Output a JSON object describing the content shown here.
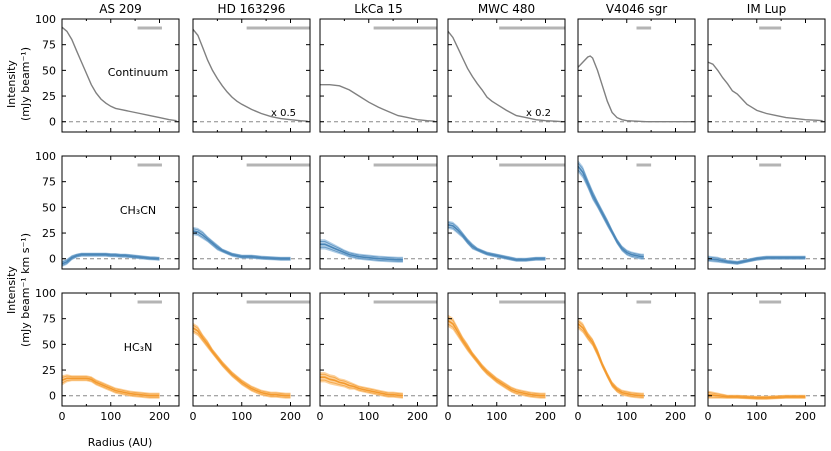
{
  "figure": {
    "xlabel": "Radius (AU)",
    "ylabels": [
      {
        "line1": "Intensity",
        "line2": "(mJy beam⁻¹)"
      },
      null,
      {
        "line1": "Intensity",
        "line2": "(mJy beam⁻¹ km s⁻¹)"
      }
    ],
    "row_labels": [
      "Continuum",
      "CH₃CN",
      "HC₃N"
    ],
    "sources": [
      "AS 209",
      "HD 163296",
      "LkCa 15",
      "MWC 480",
      "V4046 sgr",
      "IM Lup"
    ],
    "scale_notes": [
      {
        "col": 1,
        "text": "x 0.5"
      },
      {
        "col": 3,
        "text": "x 0.2"
      }
    ],
    "colors": {
      "continuum": "#808080",
      "ch3cn_line": "#4a86b8",
      "ch3cn_band": "#9fc3e2",
      "hc3n_line": "#f39a2e",
      "hc3n_band": "#fbc98a",
      "beam_bar": "#b4b4b4",
      "zero_line": "#888888"
    }
  },
  "chart_data": {
    "type": "line",
    "xlim": [
      0,
      240
    ],
    "ylim": [
      -10,
      100
    ],
    "xticks": [
      0,
      100,
      200
    ],
    "yticks": [
      0,
      25,
      50,
      75,
      100
    ],
    "beam_bars": [
      [
        155,
        205
      ],
      [
        110,
        240
      ],
      [
        110,
        240
      ],
      [
        105,
        240
      ],
      [
        120,
        150
      ],
      [
        105,
        150
      ]
    ],
    "rows": [
      {
        "name": "Continuum",
        "band": false,
        "series": [
          {
            "source": "AS 209",
            "x": [
              0,
              10,
              20,
              30,
              40,
              50,
              60,
              70,
              80,
              90,
              100,
              110,
              120,
              140,
              160,
              180,
              200,
              220,
              235
            ],
            "y": [
              92,
              88,
              80,
              69,
              58,
              47,
              36,
              28,
              22,
              18,
              15,
              13,
              12,
              10,
              8,
              6,
              4,
              2,
              1
            ]
          },
          {
            "source": "HD 163296",
            "x": [
              0,
              10,
              20,
              30,
              40,
              50,
              60,
              70,
              80,
              90,
              100,
              120,
              140,
              160,
              180,
              200,
              220,
              235
            ],
            "y": [
              90,
              84,
              72,
              60,
              50,
              42,
              35,
              29,
              24,
              20,
              17,
              12,
              8,
              5,
              3,
              2,
              1,
              0.5
            ]
          },
          {
            "source": "LkCa 15",
            "x": [
              0,
              20,
              40,
              60,
              80,
              100,
              120,
              140,
              160,
              180,
              200,
              220,
              235
            ],
            "y": [
              36,
              36,
              35,
              31,
              25,
              19,
              14,
              10,
              6,
              4,
              2,
              1,
              0.5
            ]
          },
          {
            "source": "MWC 480",
            "x": [
              0,
              10,
              20,
              30,
              40,
              50,
              60,
              70,
              80,
              90,
              100,
              120,
              140,
              160,
              180,
              200,
              220,
              235
            ],
            "y": [
              88,
              82,
              72,
              62,
              52,
              44,
              37,
              31,
              24,
              20,
              17,
              11,
              6,
              4,
              2,
              1,
              0.5,
              0
            ]
          },
          {
            "source": "V4046 sgr",
            "x": [
              0,
              10,
              20,
              25,
              30,
              40,
              50,
              60,
              70,
              80,
              90,
              100,
              120,
              140,
              160,
              200,
              235
            ],
            "y": [
              53,
              58,
              63,
              64,
              62,
              50,
              35,
              20,
              9,
              4,
              2,
              1,
              0.5,
              0,
              0,
              0,
              0
            ]
          },
          {
            "source": "IM Lup",
            "x": [
              0,
              10,
              20,
              30,
              40,
              50,
              60,
              70,
              80,
              90,
              100,
              120,
              140,
              160,
              180,
              200,
              220,
              235
            ],
            "y": [
              58,
              56,
              50,
              43,
              37,
              30,
              27,
              22,
              17,
              14,
              11,
              8,
              6,
              4,
              3,
              2,
              1.5,
              1
            ]
          }
        ]
      },
      {
        "name": "CH3CN",
        "band": true,
        "series": [
          {
            "source": "AS 209",
            "x": [
              0,
              10,
              20,
              30,
              40,
              50,
              60,
              70,
              80,
              90,
              100,
              110,
              120,
              130,
              140,
              150,
              160,
              170,
              180,
              190,
              200
            ],
            "y": [
              -5,
              -3,
              1,
              3,
              4,
              4,
              4,
              4,
              4,
              4,
              3.5,
              3.5,
              3,
              3,
              2.5,
              2,
              1.5,
              1,
              0.5,
              0.3,
              0
            ],
            "err": [
              3,
              3,
              2.5,
              2,
              2,
              2,
              2,
              2,
              2,
              2,
              2,
              2,
              2,
              2,
              2,
              2,
              2,
              2,
              2,
              2,
              2
            ]
          },
          {
            "source": "HD 163296",
            "x": [
              0,
              10,
              20,
              30,
              40,
              50,
              60,
              70,
              80,
              90,
              100,
              120,
              140,
              160,
              180,
              200
            ],
            "y": [
              27,
              26,
              23,
              19,
              15,
              11,
              8,
              6,
              4,
              3,
              2,
              2,
              1,
              0.5,
              0,
              0
            ],
            "err": [
              4,
              4,
              4,
              3,
              3,
              3,
              2,
              2,
              2,
              2,
              2,
              2,
              2,
              2,
              2,
              2
            ]
          },
          {
            "source": "LkCa 15",
            "x": [
              0,
              10,
              20,
              30,
              40,
              50,
              60,
              70,
              80,
              90,
              100,
              120,
              140,
              160,
              170
            ],
            "y": [
              14,
              14,
              12,
              10,
              8,
              6,
              4,
              3,
              2,
              1.5,
              1,
              0,
              -0.5,
              -1,
              -1
            ],
            "err": [
              5,
              5,
              4.5,
              4,
              3.5,
              3,
              3,
              3,
              3,
              3,
              3,
              3,
              3,
              3,
              3
            ]
          },
          {
            "source": "MWC 480",
            "x": [
              0,
              10,
              20,
              30,
              40,
              50,
              60,
              70,
              80,
              90,
              100,
              120,
              140,
              160,
              180,
              200
            ],
            "y": [
              33,
              32,
              28,
              23,
              17,
              12,
              9,
              7,
              5,
              4,
              3,
              1,
              -1,
              -1,
              0,
              0
            ],
            "err": [
              4,
              4,
              4,
              3,
              3,
              3,
              2,
              2,
              2,
              2,
              2,
              2,
              2,
              2,
              2,
              2
            ]
          },
          {
            "source": "V4046 sgr",
            "x": [
              0,
              10,
              20,
              30,
              40,
              50,
              60,
              70,
              80,
              90,
              100,
              110,
              120,
              130,
              135
            ],
            "y": [
              90,
              84,
              73,
              62,
              53,
              44,
              35,
              26,
              17,
              10,
              6,
              4,
              3,
              2,
              2
            ],
            "err": [
              6,
              6,
              5,
              5,
              4,
              4,
              4,
              3,
              3,
              3,
              3,
              3,
              3,
              3,
              3
            ]
          },
          {
            "source": "IM Lup",
            "x": [
              0,
              20,
              40,
              60,
              80,
              100,
              120,
              140,
              160,
              180,
              200
            ],
            "y": [
              0,
              -1,
              -3,
              -4,
              -2,
              0,
              1,
              1,
              1,
              1,
              1
            ],
            "err": [
              3,
              3,
              2,
              2,
              2,
              2,
              2,
              2,
              2,
              2,
              2
            ]
          }
        ]
      },
      {
        "name": "HC3N",
        "band": true,
        "series": [
          {
            "source": "AS 209",
            "x": [
              0,
              10,
              20,
              30,
              40,
              50,
              60,
              70,
              80,
              90,
              100,
              110,
              120,
              130,
              140,
              150,
              160,
              170,
              180,
              190,
              200
            ],
            "y": [
              15,
              17,
              17,
              17,
              17,
              17,
              16,
              13,
              11,
              9,
              7,
              5,
              4,
              3,
              2,
              1.5,
              1,
              0.5,
              0,
              0,
              0
            ],
            "err": [
              5,
              4,
              3,
              3,
              3,
              3,
              3,
              3,
              3,
              3,
              3,
              3,
              3,
              3,
              3,
              3,
              3,
              3,
              3,
              3,
              3
            ]
          },
          {
            "source": "HD 163296",
            "x": [
              0,
              10,
              20,
              30,
              40,
              50,
              60,
              70,
              80,
              90,
              100,
              110,
              120,
              130,
              140,
              150,
              160,
              170,
              180,
              190,
              200
            ],
            "y": [
              66,
              63,
              56,
              50,
              43,
              37,
              31,
              26,
              21,
              17,
              13,
              10,
              7,
              5,
              3,
              2,
              1,
              1,
              0.5,
              0,
              0
            ],
            "err": [
              5,
              5,
              4,
              4,
              3,
              3,
              3,
              3,
              3,
              3,
              3,
              3,
              3,
              3,
              3,
              3,
              3,
              3,
              3,
              3,
              3
            ]
          },
          {
            "source": "LkCa 15",
            "x": [
              0,
              10,
              20,
              30,
              40,
              50,
              60,
              70,
              80,
              90,
              100,
              110,
              120,
              130,
              140,
              150,
              160,
              170
            ],
            "y": [
              18,
              18,
              16,
              15,
              13,
              12,
              10,
              9,
              7,
              6,
              5,
              4,
              3,
              2,
              1,
              1,
              0.5,
              0
            ],
            "err": [
              5,
              5,
              5,
              5,
              4,
              4,
              4,
              3,
              3,
              3,
              3,
              3,
              3,
              3,
              3,
              3,
              3,
              3
            ]
          },
          {
            "source": "MWC 480",
            "x": [
              0,
              10,
              20,
              30,
              40,
              50,
              60,
              70,
              80,
              90,
              100,
              110,
              120,
              130,
              140,
              150,
              160,
              170,
              180,
              190,
              200
            ],
            "y": [
              73,
              70,
              62,
              54,
              47,
              40,
              34,
              28,
              23,
              19,
              15,
              12,
              9,
              6,
              4,
              3,
              2,
              1,
              0.5,
              0,
              0
            ],
            "err": [
              6,
              6,
              5,
              4,
              4,
              3,
              3,
              3,
              3,
              3,
              3,
              3,
              3,
              3,
              3,
              3,
              3,
              3,
              3,
              3,
              3
            ]
          },
          {
            "source": "V4046 sgr",
            "x": [
              0,
              10,
              20,
              30,
              40,
              50,
              60,
              70,
              80,
              90,
              100,
              110,
              120,
              130,
              135
            ],
            "y": [
              70,
              66,
              58,
              52,
              42,
              30,
              20,
              11,
              6,
              3,
              2,
              1,
              0.5,
              0,
              0
            ],
            "err": [
              5,
              5,
              4,
              4,
              4,
              3,
              3,
              3,
              3,
              3,
              3,
              3,
              3,
              3,
              3
            ]
          },
          {
            "source": "IM Lup",
            "x": [
              0,
              20,
              40,
              60,
              80,
              100,
              120,
              140,
              160,
              180,
              200
            ],
            "y": [
              1,
              0,
              -1,
              -1,
              -1.5,
              -2,
              -2,
              -1.5,
              -1,
              -1,
              -1
            ],
            "err": [
              4,
              3,
              2,
              2,
              2,
              2,
              2,
              2,
              2,
              2,
              2
            ]
          }
        ]
      }
    ]
  }
}
